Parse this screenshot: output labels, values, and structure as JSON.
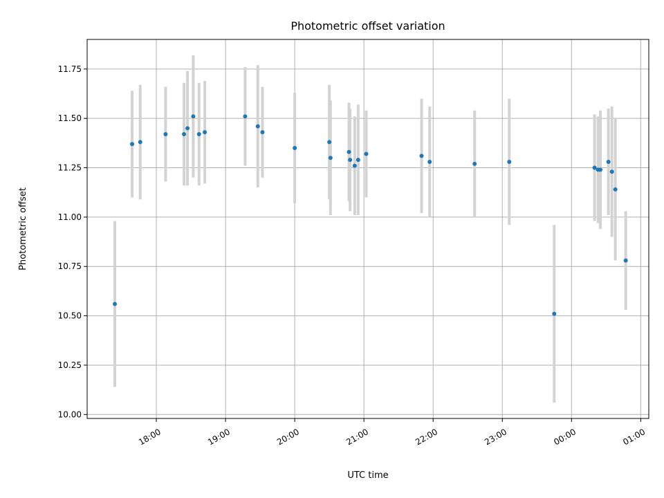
{
  "chart_data": {
    "type": "scatter",
    "title": "Photometric offset variation",
    "xlabel": "UTC time",
    "ylabel": "Photometric offset",
    "x_axis_type": "time",
    "xlim": [
      "17:00",
      "01:07"
    ],
    "ylim": [
      9.98,
      11.9
    ],
    "x_ticks": [
      "18:00",
      "19:00",
      "20:00",
      "21:00",
      "22:00",
      "23:00",
      "00:00",
      "01:00"
    ],
    "y_ticks": [
      10.0,
      10.25,
      10.5,
      10.75,
      11.0,
      11.25,
      11.5,
      11.75
    ],
    "grid": true,
    "legend": "none",
    "point_color": "#1f77b4",
    "errorbar_color": "#d3d3d3",
    "points": [
      {
        "x": "17:24",
        "y": 10.56,
        "err": 0.42
      },
      {
        "x": "17:39",
        "y": 11.37,
        "err": 0.27
      },
      {
        "x": "17:46",
        "y": 11.38,
        "err": 0.29
      },
      {
        "x": "18:08",
        "y": 11.42,
        "err": 0.24
      },
      {
        "x": "18:24",
        "y": 11.42,
        "err": 0.26
      },
      {
        "x": "18:27",
        "y": 11.45,
        "err": 0.29
      },
      {
        "x": "18:32",
        "y": 11.51,
        "err": 0.31
      },
      {
        "x": "18:37",
        "y": 11.42,
        "err": 0.26
      },
      {
        "x": "18:42",
        "y": 11.43,
        "err": 0.26
      },
      {
        "x": "19:17",
        "y": 11.51,
        "err": 0.25
      },
      {
        "x": "19:28",
        "y": 11.46,
        "err": 0.31
      },
      {
        "x": "19:32",
        "y": 11.43,
        "err": 0.23
      },
      {
        "x": "20:00",
        "y": 11.35,
        "err": 0.28
      },
      {
        "x": "20:30",
        "y": 11.38,
        "err": 0.29
      },
      {
        "x": "20:31",
        "y": 11.3,
        "err": 0.29
      },
      {
        "x": "20:47",
        "y": 11.33,
        "err": 0.25
      },
      {
        "x": "20:48",
        "y": 11.29,
        "err": 0.26
      },
      {
        "x": "20:52",
        "y": 11.26,
        "err": 0.25
      },
      {
        "x": "20:55",
        "y": 11.29,
        "err": 0.28
      },
      {
        "x": "21:02",
        "y": 11.32,
        "err": 0.22
      },
      {
        "x": "21:50",
        "y": 11.31,
        "err": 0.29
      },
      {
        "x": "21:57",
        "y": 11.28,
        "err": 0.28
      },
      {
        "x": "22:36",
        "y": 11.27,
        "err": 0.27
      },
      {
        "x": "23:06",
        "y": 11.28,
        "err": 0.32
      },
      {
        "x": "23:45",
        "y": 10.51,
        "err": 0.45
      },
      {
        "x": "00:20",
        "y": 11.25,
        "err": 0.27
      },
      {
        "x": "00:23",
        "y": 11.24,
        "err": 0.27
      },
      {
        "x": "00:25",
        "y": 11.24,
        "err": 0.3
      },
      {
        "x": "00:32",
        "y": 11.28,
        "err": 0.27
      },
      {
        "x": "00:35",
        "y": 11.23,
        "err": 0.33
      },
      {
        "x": "00:38",
        "y": 11.14,
        "err": 0.36
      },
      {
        "x": "00:47",
        "y": 10.78,
        "err": 0.25
      }
    ]
  }
}
